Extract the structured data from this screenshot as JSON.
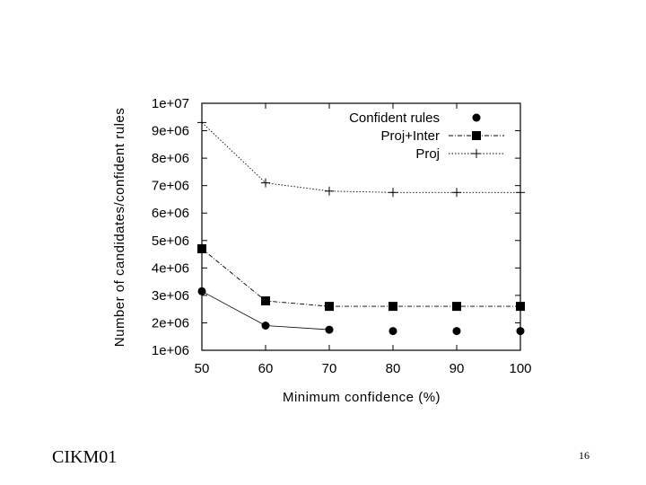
{
  "footer": {
    "left": "CIKM01",
    "right": "16"
  },
  "chart_data": {
    "type": "line",
    "xlabel": "Minimum confidence (%)",
    "ylabel": "Number of candidates/confident rules",
    "x": [
      50,
      60,
      70,
      80,
      90,
      100
    ],
    "x_ticks": [
      "50",
      "60",
      "70",
      "80",
      "90",
      "100"
    ],
    "y_ticks": [
      "1e+06",
      "2e+06",
      "3e+06",
      "4e+06",
      "5e+06",
      "6e+06",
      "7e+06",
      "8e+06",
      "9e+06",
      "1e+07"
    ],
    "xlim": [
      50,
      100
    ],
    "ylim": [
      1000000,
      10000000
    ],
    "legend_position": "top-right",
    "series": [
      {
        "name": "Confident rules",
        "marker": "circle",
        "line": "none",
        "values": [
          3150000,
          1900000,
          1750000,
          1700000,
          1700000,
          1700000
        ]
      },
      {
        "name": "Proj+Inter",
        "marker": "square",
        "line": "dash-dot",
        "values": [
          4700000,
          2800000,
          2600000,
          2600000,
          2600000,
          2600000
        ]
      },
      {
        "name": "Proj",
        "marker": "plus",
        "line": "dotted",
        "values": [
          9300000,
          7100000,
          6800000,
          6750000,
          6750000,
          6750000
        ]
      }
    ]
  }
}
